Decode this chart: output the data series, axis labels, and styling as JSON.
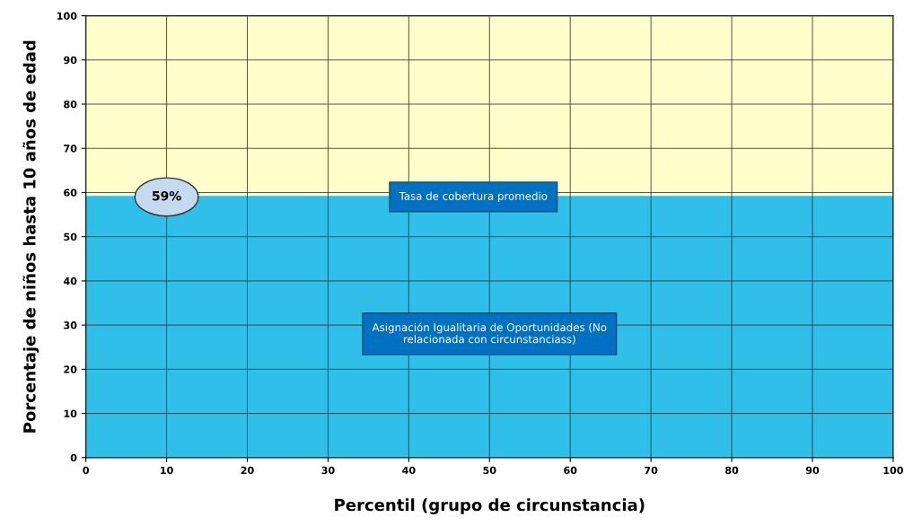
{
  "chart_data": {
    "type": "area",
    "xlabel": "Percentil (grupo de circunstancia)",
    "ylabel": "Porcentaje de niños hasta 10 años de edad",
    "x": [
      0,
      100
    ],
    "series": [
      {
        "color": "#2fbfe8",
        "values": [
          59,
          59
        ]
      }
    ],
    "xlim": [
      0,
      100
    ],
    "ylim": [
      0,
      100
    ],
    "xticks": [
      0,
      10,
      20,
      30,
      40,
      50,
      60,
      70,
      80,
      90,
      100
    ],
    "yticks": [
      0,
      10,
      20,
      30,
      40,
      50,
      60,
      70,
      80,
      90,
      100
    ],
    "grid": true,
    "bands": [
      {
        "axis": "y",
        "from": 59,
        "to": 100,
        "color": "#ffffcc"
      }
    ],
    "annotations": [
      {
        "text": "59%",
        "x": 10,
        "y": 59
      },
      {
        "text": "Tasa de cobertura promedio",
        "x": 48,
        "y": 59
      },
      "Asignación Igualitaria de Oportunidades (No\nrelacionada con circunstanciass)"
    ]
  }
}
